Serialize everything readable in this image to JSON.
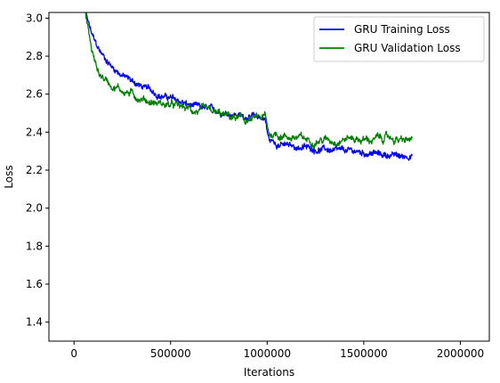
{
  "chart_data": {
    "type": "line",
    "title": "",
    "xlabel": "Iterations",
    "ylabel": "Loss",
    "xlim": [
      -130000,
      2150000
    ],
    "ylim": [
      1.3,
      3.03
    ],
    "xticks": [
      0,
      500000,
      1000000,
      1500000,
      2000000
    ],
    "xtick_labels": [
      "0",
      "500000",
      "1000000",
      "1500000",
      "2000000"
    ],
    "yticks": [
      1.4,
      1.6,
      1.8,
      2.0,
      2.2,
      2.4,
      2.6,
      2.8,
      3.0
    ],
    "ytick_labels": [
      "1.4",
      "1.6",
      "1.8",
      "2.0",
      "2.2",
      "2.4",
      "2.6",
      "2.8",
      "3.0"
    ],
    "grid": false,
    "legend_position": "top-right",
    "series": [
      {
        "name": "GRU Training Loss",
        "color": "#0000ff",
        "x": [
          60000,
          70000,
          90000,
          110000,
          130000,
          160000,
          200000,
          250000,
          300000,
          350000,
          400000,
          450000,
          500000,
          550000,
          600000,
          650000,
          700000,
          750000,
          800000,
          850000,
          900000,
          950000,
          990000,
          1000000,
          1010000,
          1030000,
          1050000,
          1100000,
          1150000,
          1200000,
          1250000,
          1300000,
          1350000,
          1400000,
          1450000,
          1500000,
          1550000,
          1600000,
          1650000,
          1700000,
          1750000
        ],
        "y": [
          3.03,
          2.99,
          2.92,
          2.87,
          2.83,
          2.79,
          2.74,
          2.7,
          2.67,
          2.64,
          2.62,
          2.59,
          2.58,
          2.56,
          2.54,
          2.53,
          2.52,
          2.51,
          2.5,
          2.49,
          2.48,
          2.48,
          2.47,
          2.4,
          2.36,
          2.35,
          2.34,
          2.33,
          2.32,
          2.32,
          2.31,
          2.31,
          2.3,
          2.3,
          2.3,
          2.29,
          2.29,
          2.28,
          2.28,
          2.27,
          2.28
        ]
      },
      {
        "name": "GRU Validation Loss",
        "color": "#008000",
        "x": [
          60000,
          70000,
          90000,
          110000,
          130000,
          160000,
          200000,
          250000,
          300000,
          350000,
          400000,
          450000,
          500000,
          550000,
          600000,
          650000,
          700000,
          750000,
          800000,
          850000,
          900000,
          950000,
          990000,
          1000000,
          1010000,
          1030000,
          1050000,
          1100000,
          1150000,
          1200000,
          1250000,
          1300000,
          1350000,
          1400000,
          1450000,
          1500000,
          1550000,
          1600000,
          1650000,
          1700000,
          1750000
        ],
        "y": [
          3.02,
          2.96,
          2.84,
          2.76,
          2.71,
          2.68,
          2.65,
          2.62,
          2.6,
          2.58,
          2.56,
          2.55,
          2.54,
          2.53,
          2.52,
          2.51,
          2.5,
          2.49,
          2.48,
          2.47,
          2.46,
          2.47,
          2.48,
          2.42,
          2.39,
          2.39,
          2.39,
          2.38,
          2.37,
          2.36,
          2.36,
          2.36,
          2.36,
          2.37,
          2.37,
          2.36,
          2.36,
          2.37,
          2.37,
          2.35,
          2.36
        ]
      }
    ]
  }
}
